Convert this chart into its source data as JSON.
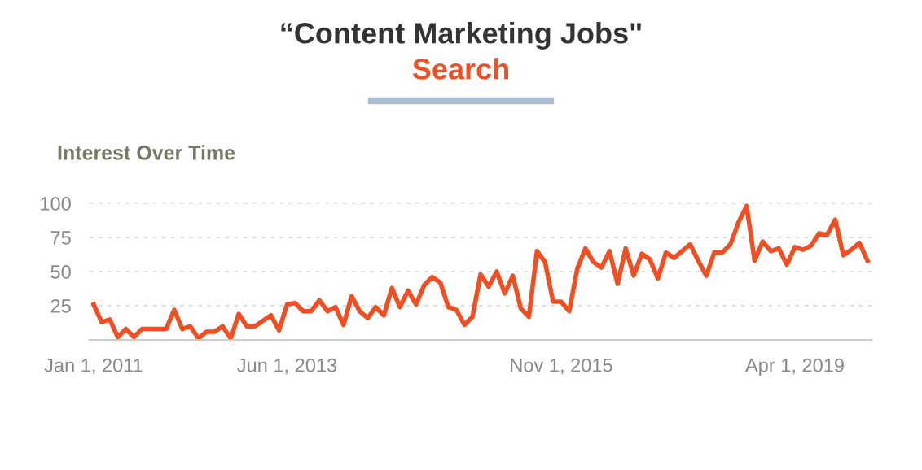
{
  "chart_data": {
    "type": "line",
    "title": "“Content Marketing Jobs\"",
    "subtitle": "Search",
    "annotations": [
      "Interest Over Time"
    ],
    "categories": [
      "Jan 1, 2011",
      null,
      null,
      null,
      null,
      null,
      null,
      null,
      null,
      null,
      null,
      null,
      null,
      null,
      null,
      null,
      null,
      null,
      null,
      null,
      null,
      null,
      null,
      null,
      "Jun 1, 2013",
      null,
      null,
      null,
      null,
      null,
      null,
      null,
      null,
      null,
      null,
      null,
      null,
      null,
      null,
      null,
      null,
      null,
      null,
      null,
      null,
      null,
      null,
      null,
      null,
      null,
      null,
      null,
      null,
      null,
      null,
      null,
      null,
      null,
      "Nov 1, 2015",
      null,
      null,
      null,
      null,
      null,
      null,
      null,
      null,
      null,
      null,
      null,
      null,
      null,
      null,
      null,
      null,
      null,
      null,
      null,
      null,
      null,
      null,
      null,
      null,
      null,
      null,
      null,
      null,
      "Apr 1, 2019",
      null,
      null,
      null,
      null,
      null,
      null,
      null,
      null,
      null
    ],
    "series": [
      {
        "color": "#f04e23",
        "values": [
          26,
          13,
          15,
          2,
          8,
          2,
          8,
          8,
          8,
          8,
          22,
          8,
          10,
          1,
          6,
          6,
          10,
          1,
          19,
          10,
          10,
          14,
          18,
          7,
          26,
          27,
          21,
          21,
          29,
          21,
          24,
          11,
          32,
          21,
          16,
          24,
          18,
          38,
          24,
          36,
          26,
          40,
          46,
          42,
          24,
          22,
          11,
          17,
          48,
          39,
          50,
          34,
          47,
          23,
          17,
          65,
          57,
          28,
          28,
          21,
          52,
          67,
          57,
          53,
          65,
          41,
          67,
          47,
          63,
          59,
          45,
          64,
          60,
          65,
          70,
          58,
          47,
          64,
          64,
          70,
          86,
          98,
          58,
          72,
          65,
          67,
          55,
          68,
          66,
          69,
          78,
          77,
          88,
          62,
          66,
          71,
          58
        ]
      }
    ],
    "ylim": [
      0,
      100
    ],
    "yticks": [
      25,
      50,
      75,
      100
    ],
    "grid": "y",
    "line_style": "solid",
    "marker": "none"
  }
}
